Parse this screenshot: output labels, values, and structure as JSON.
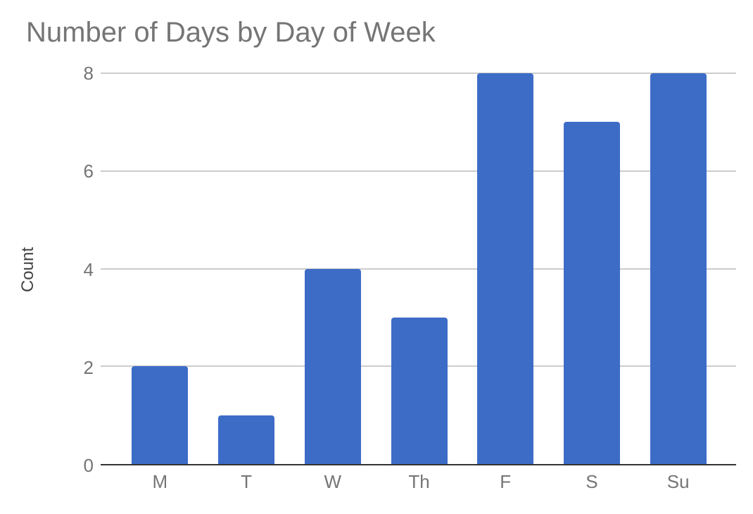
{
  "chart_data": {
    "type": "bar",
    "title": "Number of Days by Day of Week",
    "categories": [
      "M",
      "T",
      "W",
      "Th",
      "F",
      "S",
      "Su"
    ],
    "values": [
      2,
      1,
      4,
      3,
      8,
      7,
      8
    ],
    "xlabel": "",
    "ylabel": "Count",
    "yticks": [
      0,
      2,
      4,
      6,
      8
    ],
    "ylim": [
      0,
      8
    ],
    "grid": true,
    "legend_position": "none",
    "colors": {
      "bar": "#3d6cc7",
      "gridline": "#cccccc",
      "axis_line": "#333333",
      "title_text": "#757575",
      "tick_text": "#757575",
      "axis_title_text": "#424242",
      "background": "#ffffff"
    }
  }
}
